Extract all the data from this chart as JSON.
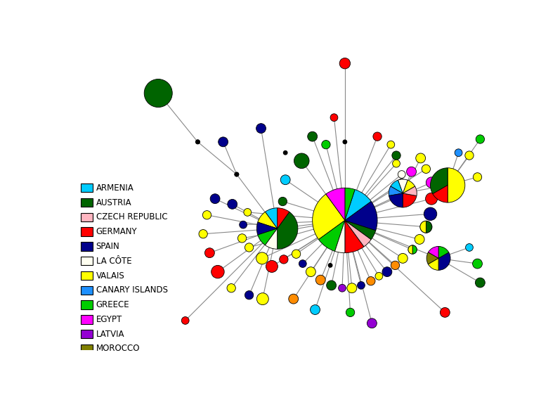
{
  "colors": {
    "ARM": "#00CCFF",
    "AUT": "#006400",
    "CZE": "#FFB6C1",
    "GER": "#FF0000",
    "SPA": "#00008B",
    "LAC": "#FFFFF0",
    "VAL": "#FFFF00",
    "CAN": "#1E90FF",
    "GRE": "#00CC00",
    "EGY": "#FF00FF",
    "LAT": "#9400D3",
    "MOR": "#808000",
    "ORA": "#FF8C00"
  },
  "legend": [
    [
      "ARMENIA",
      "#00CCFF"
    ],
    [
      "AUSTRIA",
      "#006400"
    ],
    [
      "CZECH REPUBLIC",
      "#FFB6C1"
    ],
    [
      "GERMANY",
      "#FF0000"
    ],
    [
      "SPAIN",
      "#00008B"
    ],
    [
      "LA CÔTE",
      "#FFFFF0"
    ],
    [
      "VALAIS",
      "#FFFF00"
    ],
    [
      "CANARY ISLANDS",
      "#1E90FF"
    ],
    [
      "GREECE",
      "#00CC00"
    ],
    [
      "EGYPT",
      "#FF00FF"
    ],
    [
      "LATVIA",
      "#9400D3"
    ],
    [
      "MOROCCO",
      "#808000"
    ]
  ],
  "background": "#FFFFFF"
}
